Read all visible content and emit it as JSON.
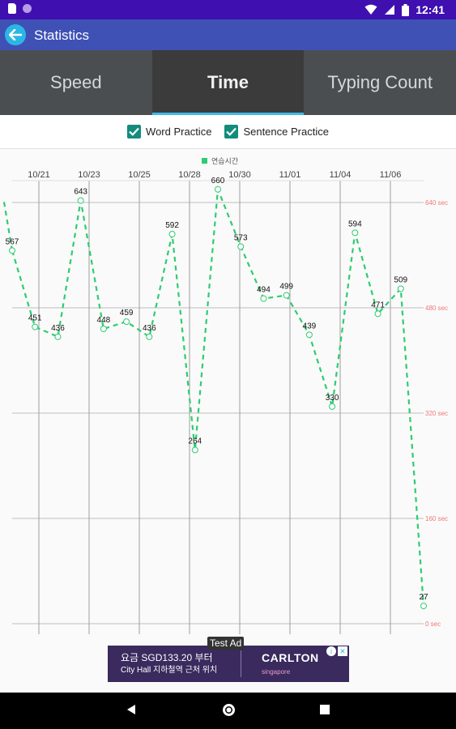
{
  "status_bar": {
    "time": "12:41",
    "icons": [
      "sd-card-icon",
      "circle-notification-icon",
      "wifi-icon",
      "signal-icon",
      "battery-icon"
    ]
  },
  "app_bar": {
    "title": "Statistics",
    "back_icon": "back-arrow-icon"
  },
  "tabs": [
    {
      "label": "Speed",
      "active": false
    },
    {
      "label": "Time",
      "active": true
    },
    {
      "label": "Typing Count",
      "active": false
    }
  ],
  "filters": {
    "word_practice": {
      "label": "Word Practice",
      "checked": true
    },
    "sentence_practice": {
      "label": "Sentence Practice",
      "checked": true
    }
  },
  "chart_data": {
    "type": "line",
    "legend": {
      "label": "연습시간",
      "position": "top-center",
      "color": "#2ecc71"
    },
    "x_tick_labels": [
      "10/21",
      "10/23",
      "10/25",
      "10/28",
      "10/30",
      "11/01",
      "11/04",
      "11/06"
    ],
    "y_tick_labels": [
      "0 sec",
      "160 sec",
      "320 sec",
      "480 sec",
      "640 sec"
    ],
    "ylim": [
      0,
      640
    ],
    "grid": true,
    "series": [
      {
        "name": "연습시간",
        "color": "#2ecc71",
        "style": "dashed",
        "values": [
          567,
          451,
          436,
          643,
          448,
          459,
          436,
          592,
          264,
          660,
          573,
          494,
          499,
          439,
          330,
          594,
          471,
          509,
          27
        ],
        "value_labels": [
          "567",
          "451",
          "436",
          "643",
          "448",
          "459",
          "436",
          "592",
          "264",
          "660",
          "573",
          "494",
          "499",
          "439",
          "330",
          "594",
          "471",
          "509",
          "27"
        ]
      }
    ]
  },
  "ad": {
    "badge": "Test Ad",
    "line1": "요금 SGD133.20 부터",
    "line2": "City Hall 지하철역 근처 위치",
    "brand": "CARLTON",
    "brand_sub": "singapore",
    "info_icon": "info-icon",
    "close_icon": "close-icon"
  },
  "nav_bar": {
    "icons": [
      "back-triangle-icon",
      "home-circle-icon",
      "recents-square-icon"
    ]
  }
}
